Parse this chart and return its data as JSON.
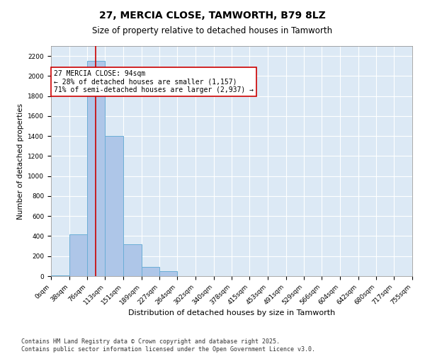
{
  "title_line1": "27, MERCIA CLOSE, TAMWORTH, B79 8LZ",
  "title_line2": "Size of property relative to detached houses in Tamworth",
  "xlabel": "Distribution of detached houses by size in Tamworth",
  "ylabel": "Number of detached properties",
  "bin_edges": [
    0,
    38,
    76,
    113,
    151,
    189,
    227,
    264,
    302,
    340,
    378,
    415,
    453,
    491,
    529,
    566,
    604,
    642,
    680,
    717,
    755
  ],
  "bar_heights": [
    5,
    420,
    2150,
    1400,
    320,
    90,
    50,
    0,
    0,
    0,
    0,
    0,
    0,
    0,
    0,
    0,
    0,
    0,
    0,
    0
  ],
  "bar_color": "#aec6e8",
  "bar_edgecolor": "#6baed6",
  "bg_color": "#dce9f5",
  "grid_color": "#ffffff",
  "vline_x": 94,
  "vline_color": "#cc0000",
  "annotation_text": "27 MERCIA CLOSE: 94sqm\n← 28% of detached houses are smaller (1,157)\n71% of semi-detached houses are larger (2,937) →",
  "annotation_box_color": "#cc0000",
  "ylim": [
    0,
    2300
  ],
  "yticks": [
    0,
    200,
    400,
    600,
    800,
    1000,
    1200,
    1400,
    1600,
    1800,
    2000,
    2200
  ],
  "footer_line1": "Contains HM Land Registry data © Crown copyright and database right 2025.",
  "footer_line2": "Contains public sector information licensed under the Open Government Licence v3.0.",
  "title_fontsize": 10,
  "subtitle_fontsize": 8.5,
  "axis_label_fontsize": 7.5,
  "tick_fontsize": 6.5,
  "annotation_fontsize": 7,
  "footer_fontsize": 6
}
